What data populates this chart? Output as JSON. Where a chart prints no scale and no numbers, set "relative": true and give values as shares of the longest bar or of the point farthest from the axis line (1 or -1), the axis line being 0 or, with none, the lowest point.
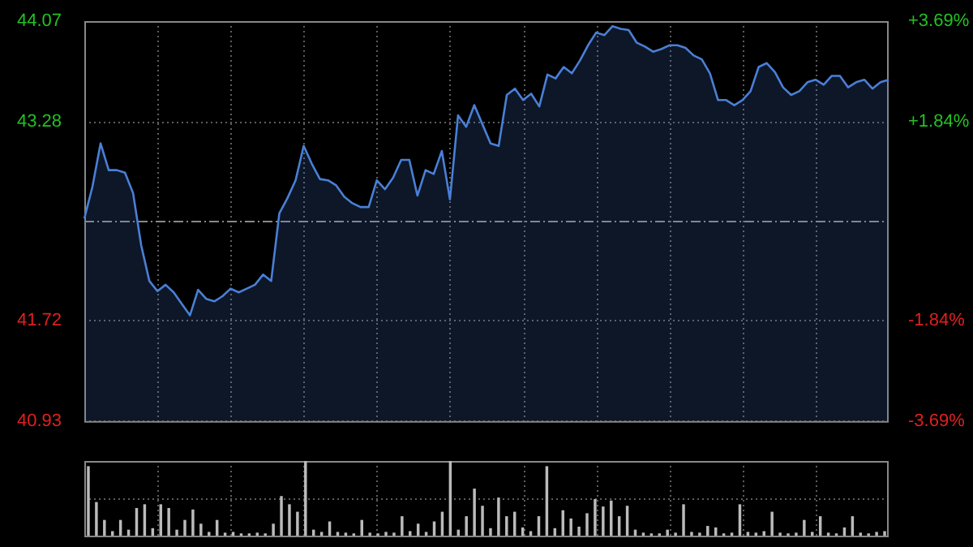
{
  "chart_data": [
    {
      "type": "area",
      "categories": [
        null,
        null,
        null,
        null,
        null,
        null,
        null,
        null,
        null,
        null,
        null,
        null,
        null,
        null,
        null,
        null,
        null,
        null,
        null,
        null,
        null,
        null,
        null,
        null,
        null,
        null,
        null,
        null,
        null,
        null,
        null,
        null,
        null,
        null,
        null,
        null,
        null,
        null,
        null,
        null,
        null,
        null,
        null,
        null,
        null,
        null,
        null,
        null,
        null,
        null,
        null,
        null,
        null,
        null,
        null,
        null,
        null,
        null,
        null,
        null,
        null,
        null,
        null,
        null,
        null,
        null,
        null,
        null,
        null,
        null,
        null,
        null,
        null,
        null,
        null,
        null,
        null,
        null,
        null,
        null,
        null,
        null,
        null,
        null,
        null,
        null,
        null,
        null,
        null,
        null,
        null,
        null,
        null,
        null,
        null,
        null,
        null,
        null,
        null,
        null
      ],
      "series": [
        {
          "color": "#4a7fd6",
          "values": [
            42.52,
            42.77,
            43.11,
            42.9,
            42.9,
            42.88,
            42.72,
            42.31,
            42.03,
            41.95,
            42.0,
            41.94,
            41.85,
            41.76,
            41.96,
            41.89,
            41.87,
            41.91,
            41.97,
            41.94,
            41.97,
            42.0,
            42.08,
            42.03,
            42.56,
            42.68,
            42.82,
            43.09,
            42.95,
            42.83,
            42.82,
            42.78,
            42.69,
            42.64,
            42.61,
            42.61,
            42.82,
            42.75,
            42.84,
            42.98,
            42.98,
            42.7,
            42.9,
            42.87,
            43.05,
            42.67,
            43.33,
            43.24,
            43.41,
            43.26,
            43.11,
            43.09,
            43.49,
            43.54,
            43.45,
            43.5,
            43.4,
            43.65,
            43.62,
            43.71,
            43.66,
            43.76,
            43.88,
            43.98,
            43.96,
            44.03,
            44.01,
            44.0,
            43.9,
            43.87,
            43.83,
            43.85,
            43.88,
            43.88,
            43.86,
            43.8,
            43.77,
            43.66,
            43.45,
            43.45,
            43.41,
            43.45,
            43.52,
            43.71,
            43.74,
            43.67,
            43.55,
            43.49,
            43.52,
            43.59,
            43.61,
            43.57,
            43.64,
            43.64,
            43.55,
            43.59,
            43.61,
            43.54,
            43.59,
            43.61
          ]
        }
      ],
      "ylim": [
        40.93,
        44.07
      ],
      "yticks": [
        40.93,
        41.72,
        43.28,
        44.07
      ],
      "y2lim": [
        -3.69,
        3.69
      ],
      "y2ticks": [
        {
          "value": -3.69,
          "label": "-3.69%"
        },
        {
          "value": -1.84,
          "label": "-1.84%"
        },
        {
          "value": 1.84,
          "label": "+1.84%"
        },
        {
          "value": 3.69,
          "label": "+3.69%"
        }
      ],
      "ref_lines": [
        {
          "axis": "y",
          "value": 42.5,
          "label": null,
          "color": "#888888",
          "line_style": "dashed"
        }
      ],
      "grid": true,
      "legend": false,
      "marker": "none"
    },
    {
      "type": "bar",
      "relative": true,
      "grid": true,
      "legend": false,
      "categories": [
        null,
        null,
        null,
        null,
        null,
        null,
        null,
        null,
        null,
        null,
        null,
        null,
        null,
        null,
        null,
        null,
        null,
        null,
        null,
        null,
        null,
        null,
        null,
        null,
        null,
        null,
        null,
        null,
        null,
        null,
        null,
        null,
        null,
        null,
        null,
        null,
        null,
        null,
        null,
        null,
        null,
        null,
        null,
        null,
        null,
        null,
        null,
        null,
        null,
        null,
        null,
        null,
        null,
        null,
        null,
        null,
        null,
        null,
        null,
        null,
        null,
        null,
        null,
        null,
        null,
        null,
        null,
        null,
        null,
        null,
        null,
        null,
        null,
        null,
        null,
        null,
        null,
        null,
        null,
        null,
        null,
        null,
        null,
        null,
        null,
        null,
        null,
        null,
        null,
        null,
        null,
        null,
        null,
        null,
        null,
        null,
        null,
        null,
        null,
        null
      ],
      "series": [
        {
          "color": "#bbbbbb",
          "values": [
            0.93,
            0.45,
            0.21,
            0.06,
            0.21,
            0.08,
            0.37,
            0.42,
            0.1,
            0.42,
            0.37,
            0.08,
            0.21,
            0.35,
            0.16,
            0.05,
            0.21,
            0.04,
            0.05,
            0.03,
            0.03,
            0.04,
            0.03,
            0.16,
            0.53,
            0.42,
            0.32,
            1,
            0.08,
            0.05,
            0.19,
            0.05,
            0.04,
            0.03,
            0.21,
            0.04,
            0.03,
            0.05,
            0.04,
            0.26,
            0.06,
            0.16,
            0.05,
            0.19,
            0.32,
            1,
            0.08,
            0.26,
            0.63,
            0.4,
            0.1,
            0.51,
            0.26,
            0.32,
            0.11,
            0.06,
            0.26,
            0.93,
            0.1,
            0.34,
            0.23,
            0.12,
            0.3,
            0.49,
            0.39,
            0.47,
            0.26,
            0.4,
            0.08,
            0.04,
            0.03,
            0.03,
            0.08,
            0.04,
            0.42,
            0.05,
            0.04,
            0.13,
            0.11,
            0.03,
            0.04,
            0.42,
            0.05,
            0.04,
            0.06,
            0.32,
            0.04,
            0.03,
            0.04,
            0.21,
            0.05,
            0.26,
            0.04,
            0.03,
            0.11,
            0.26,
            0.04,
            0.03,
            0.05,
            0.06
          ]
        }
      ]
    }
  ]
}
